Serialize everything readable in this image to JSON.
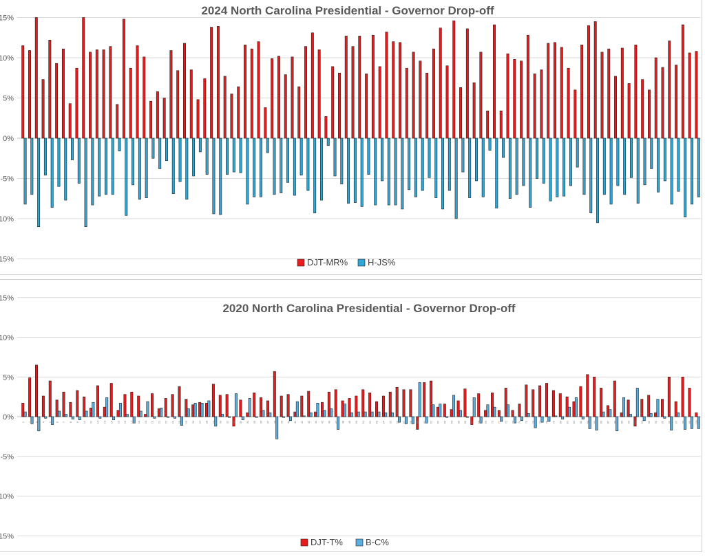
{
  "chart_data": [
    {
      "type": "bar",
      "title": "2024 North Carolina Presidential - Governor Drop-off",
      "ylim": [
        -15,
        15
      ],
      "yticks": [
        15,
        10,
        5,
        0,
        -5,
        -10,
        -15
      ],
      "ytick_labels": [
        "15%",
        "10%",
        "5%",
        "0%",
        "-5%",
        "-10%",
        "-15%"
      ],
      "grid": true,
      "legend_position": "bottom",
      "series": [
        {
          "name": "DJT-MR%",
          "color": "#e81c1c",
          "values": [
            11.5,
            10.9,
            15.0,
            7.3,
            12.2,
            9.3,
            11.1,
            4.3,
            8.7,
            15.0,
            10.7,
            11.0,
            11.0,
            11.4,
            4.2,
            14.8,
            8.7,
            11.5,
            10.1,
            4.6,
            5.8,
            5.0,
            10.9,
            8.4,
            11.8,
            8.5,
            4.8,
            7.4,
            13.8,
            13.9,
            7.7,
            5.5,
            6.4,
            11.6,
            11.1,
            12.0,
            3.8,
            9.9,
            10.2,
            7.9,
            10.1,
            6.4,
            11.4,
            13.1,
            11.0,
            2.7,
            8.9,
            8.1,
            12.7,
            11.4,
            12.7,
            8.0,
            12.8,
            8.9,
            13.2,
            12.0,
            11.9,
            8.7,
            10.7,
            9.6,
            8.1,
            11.1,
            13.7,
            9.0,
            14.6,
            6.3,
            13.6,
            6.9,
            10.7,
            3.4,
            14.1,
            3.4,
            10.5,
            9.8,
            9.6,
            12.8,
            8.0,
            8.5,
            11.8,
            11.9,
            11.3,
            8.7,
            6.0,
            11.6,
            14.0,
            14.5,
            10.7,
            11.1,
            7.7,
            11.2,
            6.8,
            11.6,
            7.3,
            6.0,
            10.0,
            8.8,
            12.1,
            9.1,
            14.1,
            10.6,
            10.8
          ]
        },
        {
          "name": "H-JS%",
          "color": "#2ea7d6",
          "values": [
            -8.2,
            -7.0,
            -11.0,
            -4.6,
            -8.6,
            -6.0,
            -7.7,
            -2.7,
            -5.6,
            -11.0,
            -8.3,
            -7.2,
            -7.0,
            -7.0,
            -1.6,
            -9.6,
            -5.8,
            -7.6,
            -7.4,
            -2.5,
            -3.8,
            -2.8,
            -6.9,
            -5.4,
            -7.6,
            -4.7,
            -1.7,
            -4.5,
            -9.4,
            -9.5,
            -4.5,
            -4.2,
            -4.3,
            -8.2,
            -7.3,
            -7.3,
            -1.8,
            -7.0,
            -6.8,
            -5.5,
            -7.1,
            -4.6,
            -6.5,
            -9.3,
            -7.7,
            -0.9,
            -4.7,
            -5.7,
            -8.1,
            -8.0,
            -8.5,
            -4.5,
            -8.3,
            -5.3,
            -8.3,
            -8.3,
            -8.8,
            -6.4,
            -7.3,
            -6.5,
            -4.9,
            -7.4,
            -8.8,
            -6.5,
            -10.0,
            -4.2,
            -7.4,
            -5.3,
            -7.3,
            -1.5,
            -8.7,
            -2.4,
            -7.5,
            -7.0,
            -5.9,
            -8.6,
            -5.0,
            -5.6,
            -7.8,
            -7.3,
            -7.2,
            -5.9,
            -3.6,
            -7.0,
            -9.3,
            -10.5,
            -7.0,
            -8.2,
            -5.9,
            -7.0,
            -4.9,
            -8.1,
            -5.8,
            -3.8,
            -6.7,
            -5.3,
            -8.2,
            -6.6,
            -9.8,
            -8.2,
            -7.3
          ]
        }
      ]
    },
    {
      "type": "bar",
      "title": "2020 North Carolina Presidential - Governor Drop-off",
      "ylim": [
        -15,
        15
      ],
      "yticks": [
        15,
        10,
        5,
        0,
        -5,
        -10,
        -15
      ],
      "ytick_labels": [
        "15%",
        "10%",
        "5%",
        "0%",
        "-5%",
        "-10%",
        "-15%"
      ],
      "grid": true,
      "legend_position": "bottom",
      "category_labels": [
        "1",
        "2",
        "3",
        "4",
        "5",
        "6",
        "7",
        "8",
        "9",
        "10",
        "11",
        "12",
        "13",
        "14",
        "15",
        "16",
        "17",
        "18",
        "19",
        "20",
        "21",
        "22",
        "23",
        "24",
        "25",
        "26",
        "27",
        "28",
        "29",
        "30",
        "31",
        "32",
        "33",
        "34",
        "35",
        "36",
        "37",
        "38",
        "39",
        "40",
        "41",
        "42",
        "43",
        "44",
        "45",
        "46",
        "47",
        "48",
        "49",
        "50",
        "51",
        "52",
        "53",
        "54",
        "55",
        "56",
        "57",
        "58",
        "59",
        "60",
        "61",
        "62",
        "63",
        "64",
        "65",
        "66",
        "67",
        "68",
        "69",
        "70",
        "71",
        "72",
        "73",
        "74",
        "75",
        "76",
        "77",
        "78",
        "79",
        "80",
        "81",
        "82",
        "83",
        "84",
        "85",
        "86",
        "87",
        "88",
        "89",
        "90",
        "91",
        "92",
        "93",
        "94",
        "95",
        "96",
        "97",
        "98",
        "99",
        "100"
      ],
      "series": [
        {
          "name": "DJT-T%",
          "color": "#e81c1c",
          "values": [
            1.7,
            4.9,
            6.5,
            2.6,
            4.5,
            2.1,
            3.1,
            1.8,
            3.3,
            2.5,
            1.1,
            3.9,
            1.2,
            4.2,
            0.8,
            2.8,
            3.1,
            2.6,
            0.3,
            2.9,
            1.0,
            2.3,
            2.8,
            3.8,
            2.2,
            1.5,
            1.8,
            1.7,
            4.1,
            2.7,
            2.8,
            -1.2,
            2.1,
            0.5,
            3.0,
            2.4,
            2.0,
            5.7,
            2.6,
            2.8,
            0.6,
            2.6,
            3.2,
            0.6,
            1.8,
            3.1,
            3.4,
            2.0,
            2.3,
            2.6,
            3.4,
            3.0,
            1.9,
            2.6,
            3.1,
            3.7,
            3.4,
            3.4,
            -1.6,
            4.3,
            4.5,
            1.2,
            1.6,
            0.9,
            2.0,
            3.5,
            -1.0,
            2.9,
            0.8,
            3.0,
            0.8,
            3.6,
            0.8,
            1.6,
            4.0,
            3.4,
            3.9,
            4.2,
            3.3,
            2.9,
            2.5,
            1.9,
            3.8,
            5.3,
            5.0,
            3.6,
            1.4,
            4.5,
            0.5,
            2.1,
            -1.2,
            2.2,
            2.7,
            0.5,
            2.2,
            5.0,
            1.9,
            5.0,
            3.6,
            0.5
          ],
          "display_values": [
            1.7,
            4.9,
            6.5,
            2.6,
            4.5,
            2.1,
            3.1,
            1.8,
            3.3,
            2.5,
            1.1,
            3.9,
            1.2,
            4.2,
            0.8,
            2.8,
            3.1,
            2.6,
            0.3,
            2.9,
            1.0,
            2.3,
            2.8,
            3.8,
            2.2,
            1.5,
            1.8,
            1.7,
            4.1,
            2.7,
            2.8,
            -1.2,
            2.1,
            0.5,
            3.0,
            2.4,
            2.0,
            5.7,
            2.6,
            2.8,
            0.6,
            2.6,
            3.2,
            0.6,
            1.8,
            3.1,
            3.4,
            2.0,
            2.3,
            2.6,
            3.4,
            3.0,
            1.9,
            2.6,
            3.1,
            3.7,
            3.4,
            3.4,
            -1.6,
            4.3,
            4.5,
            1.2,
            1.6,
            0.9,
            2.0,
            3.5,
            -1.0,
            2.9,
            0.8,
            3.0,
            0.8,
            3.6,
            0.8,
            1.6,
            4.0,
            3.4,
            3.9,
            4.2,
            3.3,
            2.9,
            2.5,
            1.9,
            3.8,
            5.3,
            5.0,
            3.6,
            1.4,
            4.5,
            0.5,
            2.1,
            -1.2,
            2.2,
            2.7,
            0.5,
            2.2,
            5.0,
            1.9,
            5.0,
            3.6,
            0.5
          ]
        },
        {
          "name": "B-C%",
          "color": "#5aafe0",
          "values": [
            0.6,
            -0.9,
            -1.8,
            -0.2,
            -1.0,
            0.7,
            0.3,
            -0.3,
            -0.4,
            0.7,
            1.8,
            -0.2,
            2.4,
            -0.4,
            1.7,
            0.3,
            -0.8,
            0.7,
            1.9,
            -0.2,
            1.1,
            -0.1,
            -0.2,
            -1.1,
            1.0,
            1.7,
            1.7,
            2.0,
            -1.2,
            0.3,
            -0.1,
            2.9,
            -0.4,
            2.3,
            -0.1,
            0.8,
            0.5,
            -2.8,
            -0.1,
            -0.5,
            1.9,
            0.1,
            0.5,
            1.7,
            0.8,
            1.0,
            -1.6,
            1.6,
            0.5,
            0.6,
            0.6,
            0.6,
            0.6,
            0.5,
            0.5,
            -0.7,
            -0.9,
            -0.9,
            4.3,
            -0.8,
            1.5,
            1.6,
            -0.1,
            2.7,
            0.8,
            -0.1,
            2.4,
            -0.8,
            1.5,
            1.2,
            -0.6,
            1.5,
            -0.8,
            -0.5,
            0.4,
            -1.4,
            -0.7,
            -0.6,
            0.1,
            -0.3,
            1.2,
            2.4,
            -0.3,
            -1.5,
            -1.7,
            0.6,
            0.9,
            -1.8,
            2.4,
            0.3,
            3.6,
            -0.5,
            0.4,
            2.2,
            -0.2,
            -1.7,
            0.5,
            -1.6,
            -1.5,
            -1.5
          ]
        }
      ]
    }
  ]
}
